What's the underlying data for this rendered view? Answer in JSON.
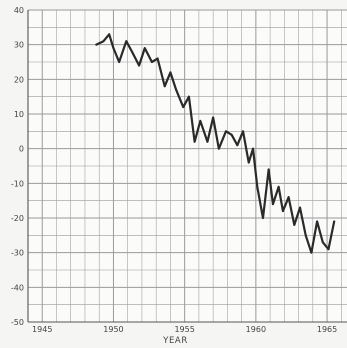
{
  "chart_data": {
    "type": "line",
    "title": "",
    "xlabel": "YEAR",
    "ylabel": "",
    "xlim": [
      1944,
      1966.4
    ],
    "ylim": [
      -50,
      40
    ],
    "x_ticks": [
      1945,
      1950,
      1955,
      1960,
      1965
    ],
    "y_ticks": [
      40,
      30,
      20,
      10,
      0,
      -10,
      -20,
      -30,
      -40,
      -50
    ],
    "x_tick_labels": [
      "1945",
      "1950",
      "1955",
      "1960",
      "1965"
    ],
    "y_tick_labels": [
      "40",
      "30",
      "20",
      "10",
      "0",
      "-10",
      "-20",
      "-30",
      "-40",
      "-50"
    ],
    "grid": true,
    "line_color": "#2a2a2a",
    "grid_color": "#9a9a9a",
    "series": [
      {
        "x": [
          1948.8,
          1949.3,
          1949.7,
          1950.0,
          1950.4,
          1950.9,
          1951.3,
          1951.8,
          1952.2,
          1952.7,
          1953.1,
          1953.6,
          1954.0,
          1954.4,
          1954.9,
          1955.3,
          1955.7,
          1956.1,
          1956.6,
          1957.0,
          1957.4,
          1957.9,
          1958.3,
          1958.7,
          1959.1,
          1959.5,
          1959.8,
          1960.1,
          1960.5,
          1960.9,
          1961.2,
          1961.6,
          1961.9,
          1962.3,
          1962.7,
          1963.1,
          1963.5,
          1963.9,
          1964.3,
          1964.7,
          1965.1,
          1965.5
        ],
        "y": [
          30,
          31,
          33,
          29,
          25,
          31,
          28,
          24,
          29,
          25,
          26,
          18,
          22,
          17,
          12,
          15,
          2,
          8,
          2,
          9,
          0,
          5,
          4,
          1,
          5,
          -4,
          0,
          -11,
          -20,
          -6,
          -16,
          -11,
          -18,
          -14,
          -22,
          -17,
          -25,
          -30,
          -21,
          -27,
          -29,
          -21
        ]
      }
    ]
  }
}
